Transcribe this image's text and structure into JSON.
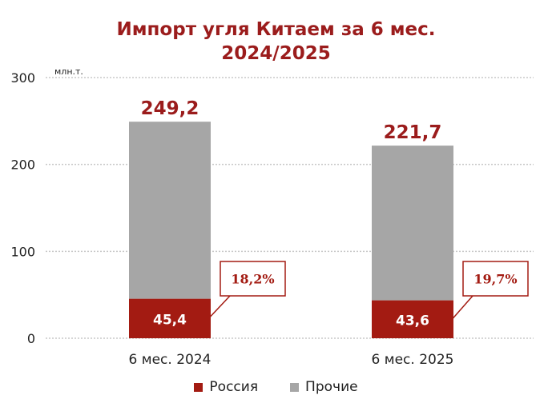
{
  "title": {
    "line1": "Импорт угля Китаем за 6 мес.",
    "line2": "2024/2025"
  },
  "colors": {
    "russia": "#a31b12",
    "other": "#a6a6a6",
    "title": "#9b1c1c",
    "grid": "#c8c8c8"
  },
  "chart_data": {
    "type": "bar",
    "stacked": true,
    "categories": [
      "6 мес. 2024",
      "6 мес. 2025"
    ],
    "series": [
      {
        "name": "Россия",
        "values": [
          45.4,
          43.6
        ],
        "value_labels": [
          "45,4",
          "43,6"
        ]
      },
      {
        "name": "Прочие",
        "values": [
          203.8,
          178.1
        ]
      }
    ],
    "totals": [
      249.2,
      221.7
    ],
    "total_labels": [
      "249,2",
      "221,7"
    ],
    "share_labels": [
      "18,2%",
      "19,7%"
    ],
    "unit_label": "млн.т.",
    "yticks": [
      0,
      100,
      200,
      300
    ],
    "ylim": [
      0,
      300
    ],
    "grid": true,
    "legend_position": "bottom"
  }
}
